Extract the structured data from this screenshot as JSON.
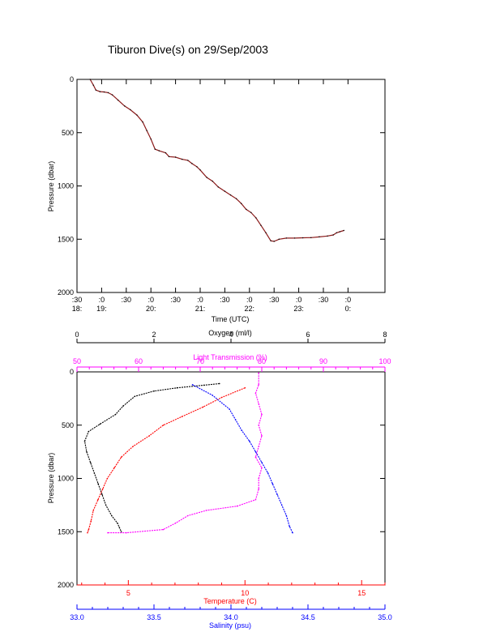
{
  "page_title": "Tiburon Dive(s) on 29/Sep/2003",
  "colors": {
    "axis": "#000000",
    "pressure_trace": "#8b1a1a",
    "oxygen": "#000000",
    "light": "#ff00ff",
    "temperature": "#ff0000",
    "salinity": "#0000ff"
  },
  "chart_data": [
    {
      "type": "line",
      "title": "Tiburon Dive(s) on 29/Sep/2003",
      "xlabel": "Time (UTC)",
      "ylabel": "Pressure (dbar)",
      "y_reversed": true,
      "ylim": [
        0,
        2000
      ],
      "yticks": [
        "0",
        "500",
        "1000",
        "1500",
        "2000"
      ],
      "xlim_minutes": [
        0,
        375
      ],
      "xticks": [
        {
          "m": 0,
          "top": ":30",
          "bot": "18:"
        },
        {
          "m": 30,
          "top": ":0",
          "bot": "19:"
        },
        {
          "m": 60,
          "top": ":30",
          "bot": ""
        },
        {
          "m": 90,
          "top": ":0",
          "bot": "20:"
        },
        {
          "m": 120,
          "top": ":30",
          "bot": ""
        },
        {
          "m": 150,
          "top": ":0",
          "bot": "21:"
        },
        {
          "m": 180,
          "top": ":30",
          "bot": ""
        },
        {
          "m": 210,
          "top": ":0",
          "bot": "22:"
        },
        {
          "m": 240,
          "top": ":30",
          "bot": ""
        },
        {
          "m": 270,
          "top": ":0",
          "bot": "23:"
        },
        {
          "m": 300,
          "top": ":30",
          "bot": ""
        },
        {
          "m": 330,
          "top": ":0",
          "bot": "0:"
        }
      ],
      "series": [
        {
          "points": [
            [
              16,
              0
            ],
            [
              20,
              55
            ],
            [
              23,
              100
            ],
            [
              28,
              115
            ],
            [
              33,
              118
            ],
            [
              38,
              125
            ],
            [
              43,
              145
            ],
            [
              50,
              195
            ],
            [
              58,
              250
            ],
            [
              65,
              285
            ],
            [
              73,
              335
            ],
            [
              80,
              400
            ],
            [
              85,
              480
            ],
            [
              90,
              560
            ],
            [
              95,
              655
            ],
            [
              100,
              670
            ],
            [
              108,
              690
            ],
            [
              112,
              725
            ],
            [
              120,
              730
            ],
            [
              128,
              750
            ],
            [
              135,
              760
            ],
            [
              140,
              790
            ],
            [
              146,
              820
            ],
            [
              150,
              850
            ],
            [
              158,
              920
            ],
            [
              165,
              955
            ],
            [
              172,
              1010
            ],
            [
              180,
              1050
            ],
            [
              187,
              1085
            ],
            [
              194,
              1120
            ],
            [
              200,
              1165
            ],
            [
              206,
              1220
            ],
            [
              212,
              1250
            ],
            [
              218,
              1300
            ],
            [
              224,
              1370
            ],
            [
              230,
              1440
            ],
            [
              236,
              1515
            ],
            [
              240,
              1520
            ],
            [
              246,
              1500
            ],
            [
              255,
              1490
            ],
            [
              265,
              1490
            ],
            [
              275,
              1487
            ],
            [
              285,
              1485
            ],
            [
              295,
              1478
            ],
            [
              305,
              1470
            ],
            [
              312,
              1460
            ],
            [
              316,
              1440
            ],
            [
              320,
              1430
            ],
            [
              325,
              1418
            ]
          ]
        }
      ]
    },
    {
      "type": "scatter",
      "ylabel": "Pressure (dbar)",
      "y_reversed": true,
      "ylim": [
        0,
        2000
      ],
      "yticks": [
        "0",
        "500",
        "1000",
        "1500",
        "2000"
      ],
      "axes": {
        "oxygen": {
          "label": "Oxygen (ml/l)",
          "lim": [
            0,
            8
          ],
          "ticks": [
            "0",
            "2",
            "4",
            "6",
            "8"
          ]
        },
        "light": {
          "label": "Light Transmission (%)",
          "lim": [
            50,
            100
          ],
          "ticks": [
            "50",
            "60",
            "70",
            "80",
            "90",
            "100"
          ]
        },
        "temperature": {
          "label": "Temperature (C)",
          "lim": [
            2.8,
            16
          ],
          "ticks": [
            "5",
            "10",
            "15"
          ]
        },
        "salinity": {
          "label": "Salinity (psu)",
          "lim": [
            33.0,
            35.0
          ],
          "ticks": [
            "33.0",
            "33.5",
            "34.0",
            "34.5",
            "35.0"
          ]
        }
      },
      "series": [
        {
          "name": "Oxygen",
          "axis": "oxygen",
          "points": [
            [
              3.7,
              110
            ],
            [
              3.3,
              125
            ],
            [
              2.6,
              150
            ],
            [
              2.0,
              180
            ],
            [
              1.5,
              230
            ],
            [
              1.2,
              320
            ],
            [
              1.0,
              400
            ],
            [
              0.6,
              490
            ],
            [
              0.3,
              560
            ],
            [
              0.2,
              650
            ],
            [
              0.25,
              750
            ],
            [
              0.35,
              850
            ],
            [
              0.45,
              950
            ],
            [
              0.55,
              1050
            ],
            [
              0.65,
              1150
            ],
            [
              0.75,
              1250
            ],
            [
              0.9,
              1350
            ],
            [
              1.05,
              1420
            ],
            [
              1.1,
              1460
            ],
            [
              1.15,
              1500
            ]
          ]
        },
        {
          "name": "Light Transmission",
          "axis": "light",
          "points": [
            [
              79.5,
              10
            ],
            [
              79.5,
              120
            ],
            [
              79.0,
              200
            ],
            [
              79.5,
              300
            ],
            [
              80.0,
              400
            ],
            [
              79.5,
              500
            ],
            [
              80.0,
              600
            ],
            [
              79.5,
              700
            ],
            [
              79.0,
              800
            ],
            [
              80.0,
              900
            ],
            [
              79.5,
              1000
            ],
            [
              79.5,
              1100
            ],
            [
              79.0,
              1200
            ],
            [
              76.0,
              1260
            ],
            [
              71.0,
              1300
            ],
            [
              68.0,
              1350
            ],
            [
              66.0,
              1420
            ],
            [
              64.0,
              1480
            ],
            [
              58.0,
              1510
            ],
            [
              55.0,
              1510
            ]
          ]
        },
        {
          "name": "Temperature",
          "axis": "temperature",
          "points": [
            [
              10.0,
              150
            ],
            [
              9.0,
              240
            ],
            [
              8.2,
              330
            ],
            [
              7.3,
              420
            ],
            [
              6.5,
              500
            ],
            [
              5.9,
              600
            ],
            [
              5.2,
              700
            ],
            [
              4.7,
              800
            ],
            [
              4.4,
              900
            ],
            [
              4.1,
              1000
            ],
            [
              3.9,
              1100
            ],
            [
              3.7,
              1200
            ],
            [
              3.5,
              1300
            ],
            [
              3.4,
              1400
            ],
            [
              3.3,
              1480
            ],
            [
              3.25,
              1510
            ]
          ]
        },
        {
          "name": "Salinity",
          "axis": "salinity",
          "points": [
            [
              33.75,
              120
            ],
            [
              33.88,
              220
            ],
            [
              33.99,
              350
            ],
            [
              34.03,
              450
            ],
            [
              34.07,
              550
            ],
            [
              34.12,
              650
            ],
            [
              34.16,
              750
            ],
            [
              34.2,
              850
            ],
            [
              34.24,
              950
            ],
            [
              34.27,
              1050
            ],
            [
              34.3,
              1150
            ],
            [
              34.33,
              1250
            ],
            [
              34.36,
              1350
            ],
            [
              34.38,
              1450
            ],
            [
              34.4,
              1510
            ]
          ]
        }
      ]
    }
  ]
}
